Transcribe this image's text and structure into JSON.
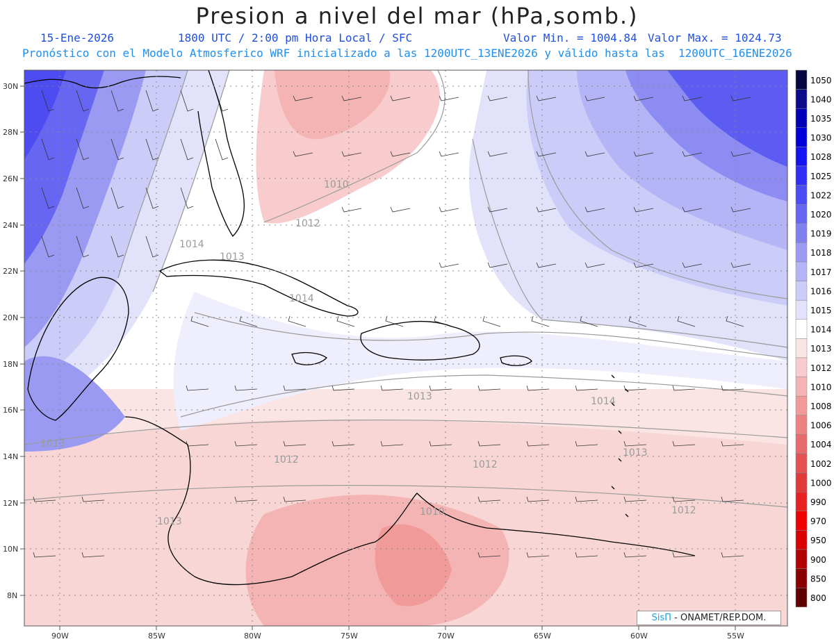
{
  "header": {
    "title": "Presion a nivel del mar (hPa,somb.)",
    "date": "15-Ene-2026",
    "time": "1800 UTC / 2:00 pm Hora Local / SFC",
    "vmin": "Valor Min. = 1004.84",
    "vmax": "Valor Max. = 1024.73",
    "forecast": "Pronóstico con el Modelo Atmosferico WRF inicializado a las 1200UTC_13ENE2026 y válido hasta las  1200UTC_16ENE2026"
  },
  "axes": {
    "lat_labels": [
      "30N",
      "28N",
      "26N",
      "24N",
      "22N",
      "20N",
      "18N",
      "16N",
      "14N",
      "12N",
      "10N",
      "8N"
    ],
    "lon_labels": [
      "90W",
      "85W",
      "80W",
      "75W",
      "70W",
      "65W",
      "60W",
      "55W"
    ]
  },
  "isobar_labels": [
    "1010",
    "1012",
    "1014",
    "1013",
    "1014",
    "1013",
    "1014",
    "1013",
    "1012",
    "1012",
    "1013",
    "1012",
    "1013",
    "1010"
  ],
  "colorbar": {
    "levels": [
      "1050",
      "1040",
      "1035",
      "1030",
      "1028",
      "1025",
      "1022",
      "1020",
      "1019",
      "1018",
      "1017",
      "1016",
      "1015",
      "1014",
      "1013",
      "1012",
      "1010",
      "1008",
      "1006",
      "1004",
      "1002",
      "1000",
      "990",
      "970",
      "950",
      "900",
      "850",
      "800"
    ],
    "colors": [
      "#07073f",
      "#0c0c8a",
      "#0000b8",
      "#0000d8",
      "#1414f0",
      "#3030f4",
      "#4c4cf4",
      "#6666f2",
      "#8080f0",
      "#9a9af2",
      "#b4b4f6",
      "#ccccf8",
      "#e2e2fb",
      "#ffffff",
      "#fbe4e4",
      "#f8cccc",
      "#f4b4b4",
      "#f09a9a",
      "#ec8282",
      "#e86a6a",
      "#e45252",
      "#e03a3a",
      "#e82222",
      "#f00000",
      "#d80000",
      "#b00000",
      "#880000",
      "#600000"
    ]
  },
  "credit": {
    "brand": "SisΠ",
    "org": "- ONAMET/REP.DOM."
  }
}
